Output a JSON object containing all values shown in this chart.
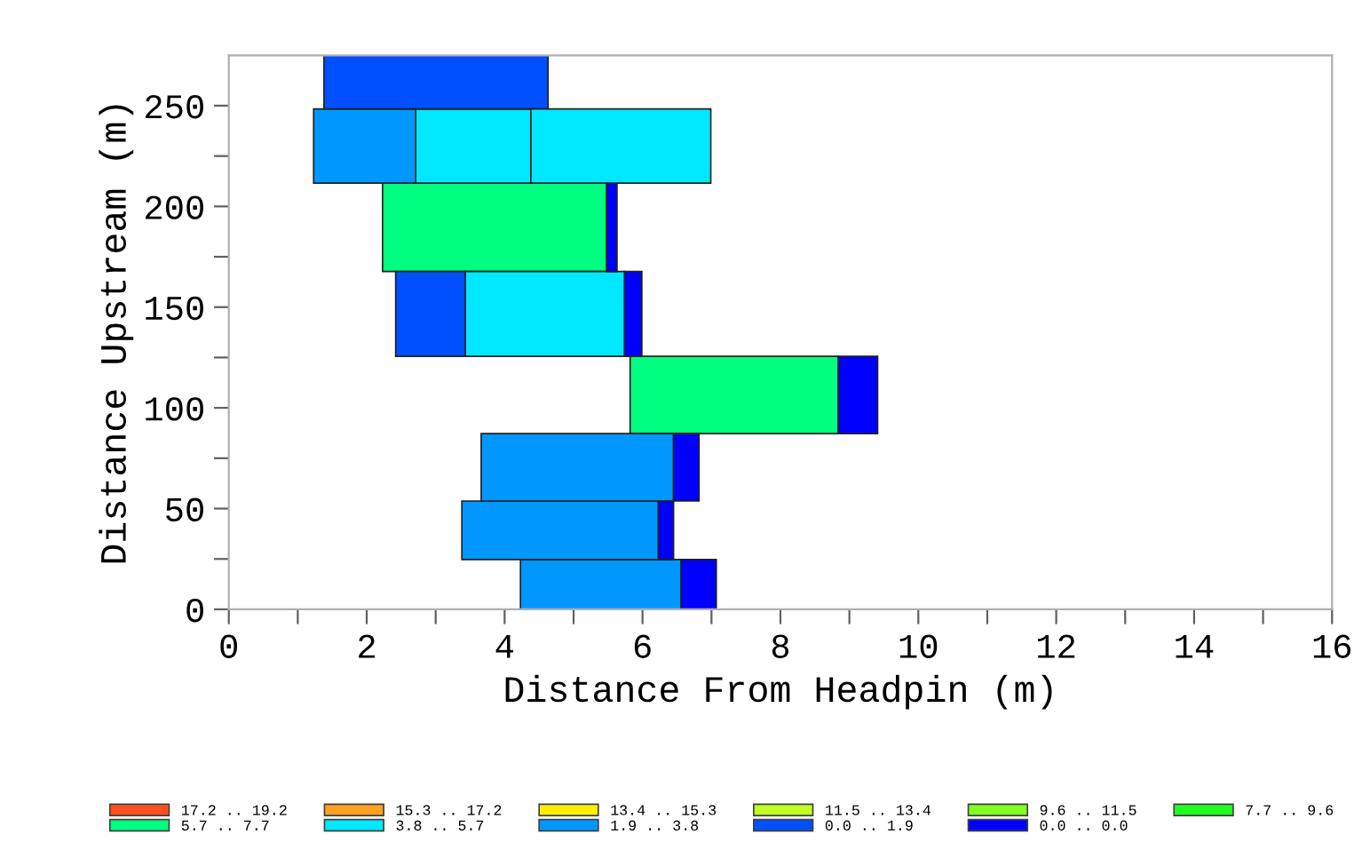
{
  "chart_data": {
    "type": "bar",
    "orientation": "horizontal",
    "xlabel": "Distance From Headpin (m)",
    "ylabel": "Distance Upstream (m)",
    "x": [
      11.3,
      38.2,
      69.3,
      105.2,
      146.0,
      189.4,
      233.8,
      262.9
    ],
    "xlim": [
      0,
      16
    ],
    "xticks": [
      0,
      {
        "value": 1,
        "label": null
      },
      2,
      {
        "value": 3,
        "label": null
      },
      4,
      {
        "value": 5,
        "label": null
      },
      6,
      {
        "value": 7,
        "label": null
      },
      8,
      {
        "value": 9,
        "label": null
      },
      10,
      {
        "value": 11,
        "label": null
      },
      12,
      {
        "value": 13,
        "label": null
      },
      14,
      {
        "value": 15,
        "label": null
      },
      16
    ],
    "ylim": [
      0,
      275
    ],
    "yticks": [
      0,
      {
        "value": 25,
        "label": null
      },
      50,
      {
        "value": 75,
        "label": null
      },
      100,
      {
        "value": 125,
        "label": null
      },
      150,
      {
        "value": 175,
        "label": null
      },
      200,
      {
        "value": 225,
        "label": null
      },
      250
    ],
    "legend": "bottom",
    "grid": false,
    "series": [
      {
        "name": "17.2 .. 19.2",
        "color": "#ff5020",
        "base": [
          null,
          null,
          null,
          null,
          null,
          null,
          null,
          null
        ],
        "values": [
          null,
          null,
          null,
          null,
          null,
          null,
          null,
          null
        ]
      },
      {
        "name": "5.7 .. 7.7",
        "color": "#00ff80",
        "base": [
          null,
          null,
          null,
          5.82,
          null,
          2.23,
          null,
          null
        ],
        "values": [
          null,
          null,
          null,
          3.02,
          null,
          3.25,
          null,
          null
        ]
      },
      {
        "name": "15.3 .. 17.2",
        "color": "#ffa020",
        "base": [
          null,
          null,
          null,
          null,
          null,
          null,
          null,
          null
        ],
        "values": [
          null,
          null,
          null,
          null,
          null,
          null,
          null,
          null
        ]
      },
      {
        "name": "3.8 .. 5.7",
        "color": "#00e8ff",
        "base": [
          null,
          null,
          null,
          null,
          3.43,
          null,
          2.71,
          null
        ],
        "values": [
          null,
          null,
          null,
          null,
          2.31,
          null,
          1.67,
          null
        ]
      },
      {
        "name": "13.4 .. 15.3",
        "color": "#ffee00",
        "base": [
          null,
          null,
          null,
          null,
          null,
          null,
          null,
          null
        ],
        "values": [
          null,
          null,
          null,
          null,
          null,
          null,
          null,
          null
        ]
      },
      {
        "name": "1.9 .. 3.8",
        "color": "#0098ff",
        "base": [
          4.23,
          3.38,
          3.66,
          null,
          null,
          null,
          1.23,
          null
        ],
        "values": [
          2.33,
          2.85,
          2.79,
          null,
          null,
          null,
          1.48,
          null
        ]
      },
      {
        "name": "11.5 .. 13.4",
        "color": "#c0ff20",
        "base": [
          null,
          null,
          null,
          null,
          null,
          null,
          null,
          null
        ],
        "values": [
          null,
          null,
          null,
          null,
          null,
          null,
          null,
          null
        ]
      },
      {
        "name": "0.0 .. 1.9",
        "color": "#0050ff",
        "base": [
          null,
          null,
          null,
          null,
          2.42,
          null,
          null,
          1.38
        ],
        "values": [
          null,
          null,
          null,
          null,
          1.01,
          null,
          null,
          3.25
        ]
      },
      {
        "name": "9.6 .. 11.5",
        "color": "#80ff20",
        "base": [
          null,
          null,
          null,
          null,
          null,
          null,
          null,
          null
        ],
        "values": [
          null,
          null,
          null,
          null,
          null,
          null,
          null,
          null
        ]
      },
      {
        "name": "0.0 .. 0.0",
        "color": "#0000ff",
        "base": [
          6.56,
          6.23,
          6.45,
          8.84,
          5.74,
          5.48,
          null,
          null
        ],
        "values": [
          0.51,
          0.22,
          0.37,
          0.57,
          0.25,
          0.15,
          null,
          null
        ]
      },
      {
        "name": "7.7 .. 9.6",
        "color": "#20ff20",
        "base": [
          null,
          null,
          null,
          null,
          null,
          null,
          null,
          null
        ],
        "values": [
          null,
          null,
          null,
          null,
          null,
          null,
          null,
          null
        ]
      },
      {
        "color": "#00e8ff",
        "base": [
          null,
          null,
          null,
          null,
          null,
          null,
          4.38,
          null
        ],
        "values": [
          null,
          null,
          null,
          null,
          null,
          null,
          2.61,
          null
        ]
      }
    ]
  }
}
